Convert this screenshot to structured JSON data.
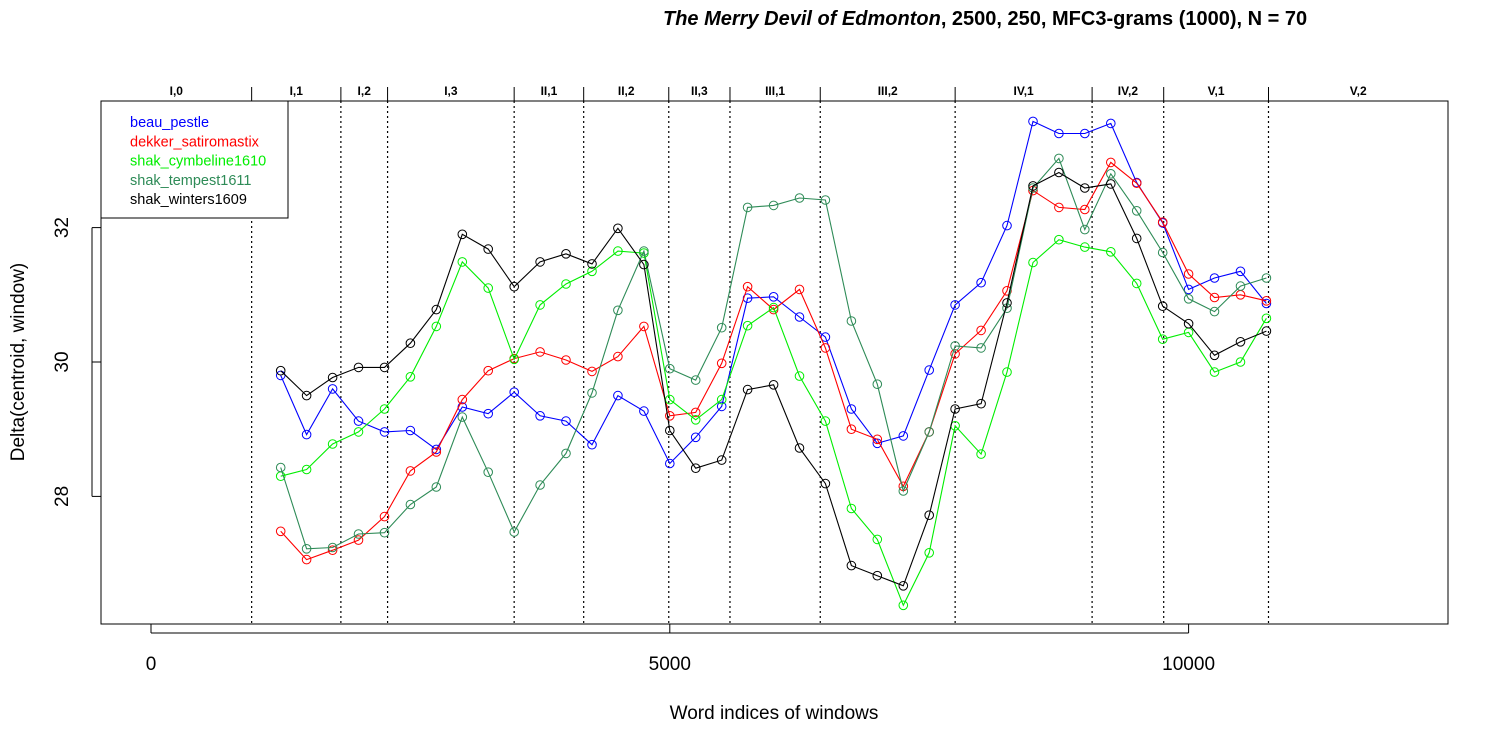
{
  "chart_data": {
    "type": "line",
    "title_italic": "The Merry Devil of Edmonton",
    "title_rest": ", 2500, 250, MFC3-grams (1000), N = 70",
    "xlabel": "Word indices of windows",
    "ylabel": "Delta(centroid, window)",
    "xlim": [
      -500,
      12500
    ],
    "ylim": [
      26.05,
      33.9
    ],
    "x_ticks": [
      0,
      5000,
      10000
    ],
    "x_tick_labels": [
      "0",
      "5000",
      "10000"
    ],
    "y_ticks": [
      28,
      30,
      32
    ],
    "y_tick_labels": [
      "28",
      "30",
      "32"
    ],
    "grid": false,
    "legend_position": "top-left",
    "scenes": [
      {
        "label": "I,0",
        "end": 970
      },
      {
        "label": "I,1",
        "end": 1830
      },
      {
        "label": "I,2",
        "end": 2280
      },
      {
        "label": "I,3",
        "end": 3500
      },
      {
        "label": "II,1",
        "end": 4170
      },
      {
        "label": "II,2",
        "end": 4990
      },
      {
        "label": "II,3",
        "end": 5580
      },
      {
        "label": "III,1",
        "end": 6450
      },
      {
        "label": "III,2",
        "end": 7750
      },
      {
        "label": "IV,1",
        "end": 9070
      },
      {
        "label": "IV,2",
        "end": 9760
      },
      {
        "label": "V,1",
        "end": 10770
      },
      {
        "label": "V,2",
        "end": 12500
      }
    ],
    "x": [
      1250,
      1500,
      1750,
      2000,
      2250,
      2500,
      2750,
      3000,
      3250,
      3500,
      3750,
      4000,
      4250,
      4500,
      4750,
      5000,
      5250,
      5500,
      5750,
      6000,
      6250,
      6500,
      6750,
      7000,
      7250,
      7500,
      7750,
      8000,
      8250,
      8500,
      8750,
      9000,
      9250,
      9500,
      9750,
      10000,
      10250,
      10500,
      10750
    ],
    "series": [
      {
        "name": "beau_pestle",
        "color": "#0000ff",
        "values": [
          29.8,
          28.92,
          29.6,
          29.12,
          28.96,
          28.98,
          28.7,
          29.33,
          29.23,
          29.55,
          29.2,
          29.12,
          28.77,
          29.5,
          29.27,
          28.49,
          28.88,
          29.34,
          30.95,
          30.97,
          30.67,
          30.37,
          29.3,
          28.79,
          28.9,
          29.88,
          30.85,
          31.18,
          32.03,
          33.58,
          33.4,
          33.4,
          33.55,
          32.67,
          32.07,
          31.08,
          31.25,
          31.35,
          30.87
        ]
      },
      {
        "name": "dekker_satiromastix",
        "color": "#ff0000",
        "values": [
          27.48,
          27.06,
          27.2,
          27.35,
          27.7,
          28.38,
          28.66,
          29.44,
          29.87,
          30.05,
          30.15,
          30.03,
          29.86,
          30.08,
          30.53,
          29.2,
          29.25,
          29.98,
          31.12,
          30.78,
          31.08,
          30.21,
          29.0,
          28.85,
          28.15,
          28.96,
          30.12,
          30.47,
          31.06,
          32.55,
          32.3,
          32.27,
          32.97,
          32.66,
          32.08,
          31.31,
          30.96,
          31.0,
          30.91
        ]
      },
      {
        "name": "shak_cymbeline1610",
        "color": "#00ee00",
        "values": [
          28.3,
          28.4,
          28.78,
          28.96,
          29.3,
          29.78,
          30.53,
          31.49,
          31.1,
          30.04,
          30.85,
          31.16,
          31.35,
          31.65,
          31.62,
          29.44,
          29.14,
          29.44,
          30.54,
          30.81,
          29.79,
          29.12,
          27.82,
          27.36,
          26.38,
          27.16,
          29.05,
          28.63,
          29.85,
          31.48,
          31.82,
          31.71,
          31.64,
          31.17,
          30.34,
          30.44,
          29.85,
          30.0,
          30.65
        ]
      },
      {
        "name": "shak_tempest1611",
        "color": "#2e8b57",
        "values": [
          28.43,
          27.22,
          27.24,
          27.44,
          27.46,
          27.88,
          28.14,
          29.18,
          28.36,
          27.47,
          28.17,
          28.64,
          29.54,
          30.77,
          31.65,
          29.9,
          29.73,
          30.51,
          32.3,
          32.33,
          32.44,
          32.41,
          30.61,
          29.67,
          28.08,
          28.96,
          30.24,
          30.21,
          30.8,
          32.59,
          33.03,
          31.97,
          32.8,
          32.25,
          31.63,
          30.94,
          30.75,
          31.13,
          31.25
        ]
      },
      {
        "name": "shak_winters1609",
        "color": "#000000",
        "values": [
          29.87,
          29.5,
          29.77,
          29.92,
          29.92,
          30.28,
          30.78,
          31.9,
          31.68,
          31.12,
          31.49,
          31.61,
          31.46,
          31.99,
          31.45,
          28.98,
          28.42,
          28.54,
          29.59,
          29.66,
          28.72,
          28.19,
          26.97,
          26.82,
          26.67,
          27.72,
          29.3,
          29.38,
          30.88,
          32.62,
          32.82,
          32.59,
          32.65,
          31.84,
          30.83,
          30.57,
          30.1,
          30.3,
          30.46
        ]
      }
    ]
  }
}
